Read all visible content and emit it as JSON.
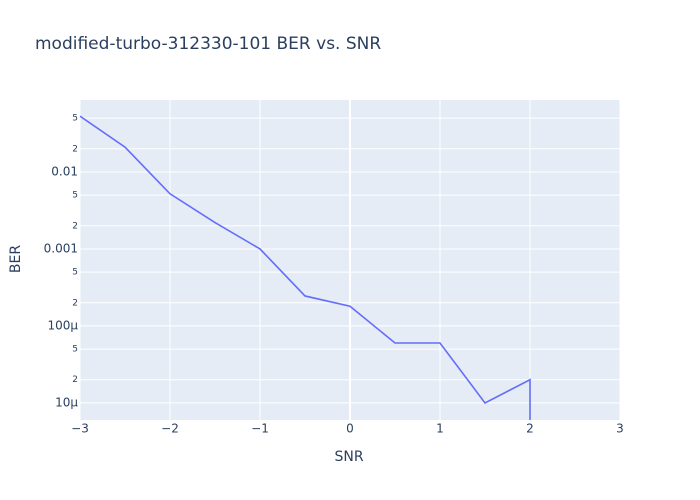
{
  "chart_data": {
    "type": "line",
    "title": "modified-turbo-312330-101 BER vs. SNR",
    "x_label": "SNR",
    "y_label": "BER",
    "x": [
      -3,
      -2.5,
      -2,
      -1.5,
      -1,
      -0.5,
      0,
      0.5,
      1,
      1.5,
      2,
      2
    ],
    "series": [
      {
        "name": "BER",
        "color": "#636efa",
        "values": [
          0.053,
          0.021,
          0.0052,
          0.0022,
          0.001,
          0.000245,
          0.00018,
          6e-05,
          6e-05,
          1e-05,
          2e-05,
          1e-06
        ]
      }
    ],
    "xlim": [
      -3,
      3
    ],
    "xticks": [
      {
        "value": -3,
        "label": "−3"
      },
      {
        "value": -2,
        "label": "−2"
      },
      {
        "value": -1,
        "label": "−1"
      },
      0,
      1,
      2,
      3
    ],
    "ylim": [
      6e-06,
      0.086
    ],
    "log_y": true,
    "yticks": [
      {
        "value": 0.05,
        "label": "5"
      },
      {
        "value": 0.02,
        "label": "2"
      },
      0.01,
      {
        "value": 0.005,
        "label": "5"
      },
      {
        "value": 0.002,
        "label": "2"
      },
      0.001,
      {
        "value": 0.0005,
        "label": "5"
      },
      {
        "value": 0.0002,
        "label": "2"
      },
      {
        "value": 0.0001,
        "label": "100μ"
      },
      {
        "value": 5e-05,
        "label": "5"
      },
      {
        "value": 2e-05,
        "label": "2"
      },
      {
        "value": 1e-05,
        "label": "10μ"
      }
    ],
    "grid": true,
    "background": "#e5ecf6"
  }
}
